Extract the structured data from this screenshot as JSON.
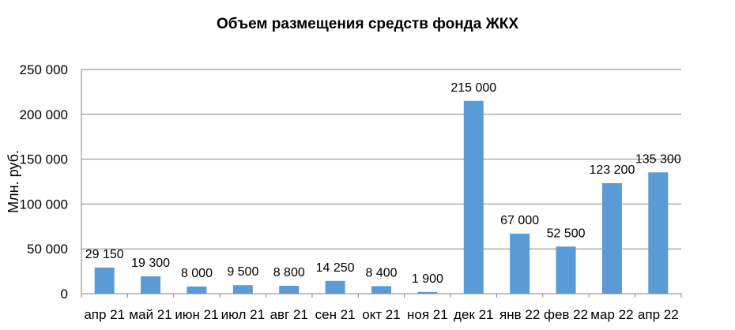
{
  "chart_data": {
    "type": "bar",
    "title": "Объем размещения средств фонда ЖКХ",
    "xlabel": "",
    "ylabel": "Млн. руб.",
    "categories": [
      "апр 21",
      "май 21",
      "июн 21",
      "июл 21",
      "авг 21",
      "сен 21",
      "окт 21",
      "ноя 21",
      "дек 21",
      "янв 22",
      "фев 22",
      "мар 22",
      "апр 22"
    ],
    "values": [
      29150,
      19300,
      8000,
      9500,
      8800,
      14250,
      8400,
      1900,
      215000,
      67000,
      52500,
      123200,
      135300
    ],
    "data_labels": [
      "29 150",
      "19 300",
      "8 000",
      "9 500",
      "8 800",
      "14 250",
      "8 400",
      "1 900",
      "215 000",
      "67 000",
      "52 500",
      "123 200",
      "135 300"
    ],
    "ylim": [
      0,
      250000
    ],
    "yticks": [
      0,
      50000,
      100000,
      150000,
      200000,
      250000
    ],
    "ytick_labels": [
      "0",
      "50 000",
      "100 000",
      "150 000",
      "200 000",
      "250 000"
    ],
    "grid": true,
    "colors": {
      "bar": "#5b9bd5",
      "grid": "#868686",
      "axis": "#868686",
      "text": "#000000"
    }
  }
}
